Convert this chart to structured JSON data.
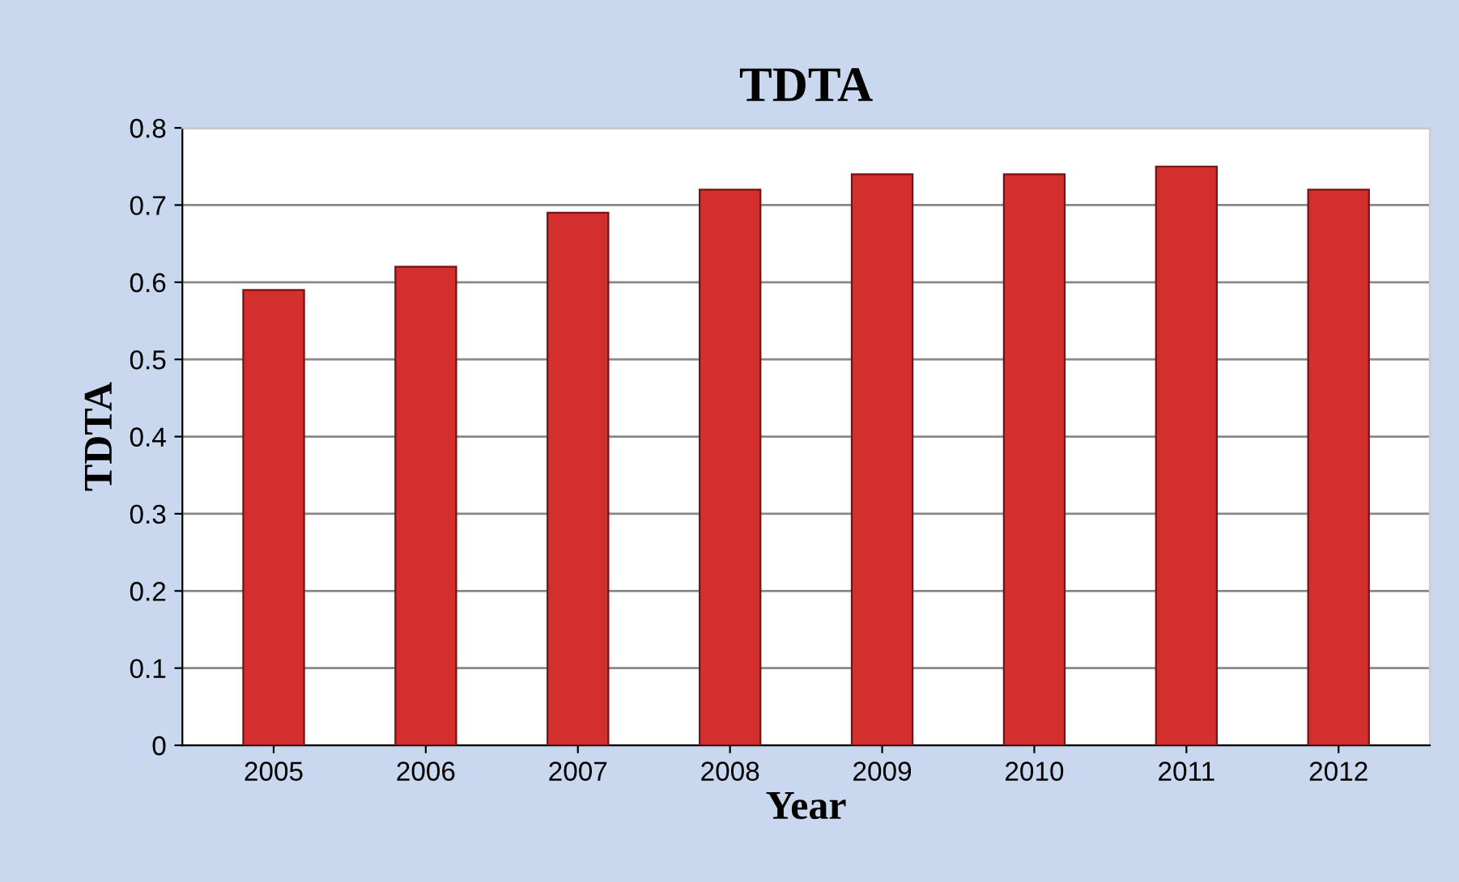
{
  "chart_data": {
    "type": "bar",
    "title": "TDTA",
    "xlabel": "Year",
    "ylabel": "TDTA",
    "categories": [
      "2005",
      "2006",
      "2007",
      "2008",
      "2009",
      "2010",
      "2011",
      "2012"
    ],
    "values": [
      0.59,
      0.62,
      0.69,
      0.72,
      0.74,
      0.74,
      0.75,
      0.72
    ],
    "color": "#d42f2f",
    "ylim": [
      0,
      0.8
    ],
    "yticks": [
      0,
      0.1,
      0.2,
      0.3,
      0.4,
      0.5,
      0.6,
      0.7,
      0.8
    ],
    "grid": "y"
  }
}
